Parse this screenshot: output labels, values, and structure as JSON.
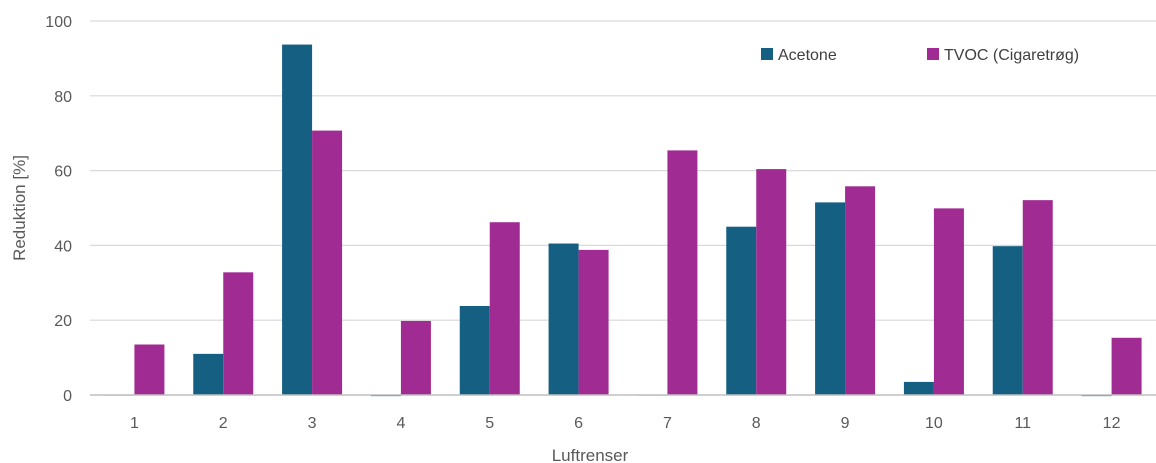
{
  "chart_data": {
    "type": "bar",
    "xlabel": "Luftrenser",
    "ylabel": "Reduktion [%]",
    "ylim": [
      0,
      100
    ],
    "yticks": [
      0,
      20,
      40,
      60,
      80,
      100
    ],
    "grid": true,
    "legend_position": "top-right",
    "categories": [
      "1",
      "2",
      "3",
      "4",
      "5",
      "6",
      "7",
      "8",
      "9",
      "10",
      "11",
      "12"
    ],
    "series": [
      {
        "name": "Acetone",
        "color": "#156082",
        "values": [
          0,
          11,
          93.7,
          -0.3,
          23.8,
          40.5,
          0,
          45,
          51.5,
          3.5,
          39.8,
          -0.3
        ]
      },
      {
        "name": "TVOC (Cigaretrøg)",
        "color": "#A02B93",
        "values": [
          13.5,
          32.8,
          70.7,
          19.8,
          46.2,
          38.8,
          65.4,
          60.4,
          55.8,
          49.9,
          52.1,
          15.3
        ]
      }
    ]
  }
}
